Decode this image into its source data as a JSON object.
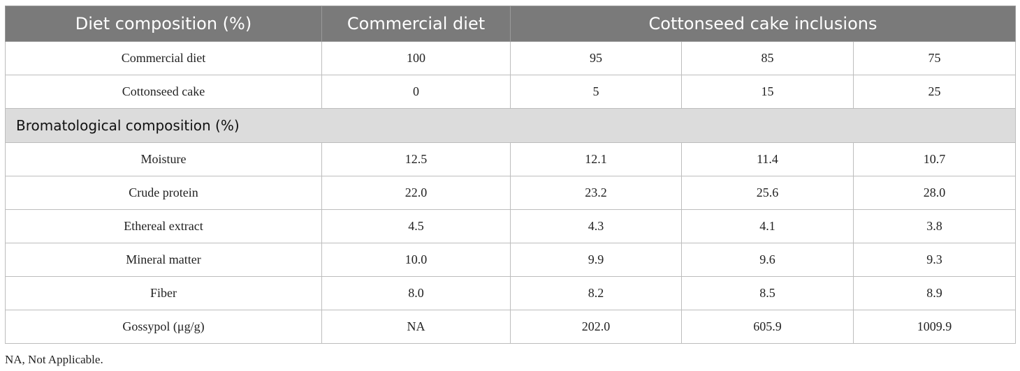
{
  "table": {
    "headers": [
      "Diet composition (%)",
      "Commercial diet",
      "Cottonseed cake inclusions"
    ],
    "rows_top": [
      [
        "Commercial diet",
        "100",
        "95",
        "85",
        "75"
      ],
      [
        "Cottonseed cake",
        "0",
        "5",
        "15",
        "25"
      ]
    ],
    "section_label": "Bromatological composition (%)",
    "rows_bottom": [
      [
        "Moisture",
        "12.5",
        "12.1",
        "11.4",
        "10.7"
      ],
      [
        "Crude protein",
        "22.0",
        "23.2",
        "25.6",
        "28.0"
      ],
      [
        "Ethereal extract",
        "4.5",
        "4.3",
        "4.1",
        "3.8"
      ],
      [
        "Mineral matter",
        "10.0",
        "9.9",
        "9.6",
        "9.3"
      ],
      [
        "Fiber",
        "8.0",
        "8.2",
        "8.5",
        "8.9"
      ],
      [
        "Gossypol (μg/g)",
        "NA",
        "202.0",
        "605.9",
        "1009.9"
      ]
    ]
  },
  "footnote": "NA, Not Applicable."
}
